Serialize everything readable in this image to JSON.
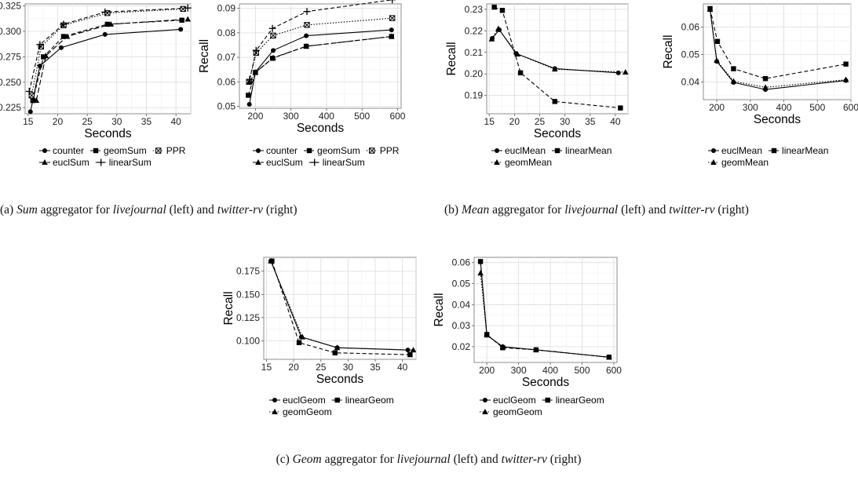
{
  "captions": [
    {
      "prefix": "(a) ",
      "agg": "Sum",
      "mid": " aggregator for ",
      "ds1": "livejournal",
      "mid2": " (left) and ",
      "ds2": "twitter-rv",
      "suffix": " (right)"
    },
    {
      "prefix": "(b) ",
      "agg": "Mean",
      "mid": " aggregator for ",
      "ds1": "livejournal",
      "mid2": " (left) and ",
      "ds2": "twitter-rv",
      "suffix": " (right)"
    },
    {
      "prefix": "(c) ",
      "agg": "Geom",
      "mid": " aggregator for ",
      "ds1": "livejournal",
      "mid2": " (left) and ",
      "ds2": "twitter-rv",
      "suffix": " (right)"
    }
  ],
  "chart_data": [
    {
      "type": "line",
      "xlabel": "Seconds",
      "ylabel": "Recall",
      "xlim": [
        14.5,
        42.5
      ],
      "ylim": [
        0.219,
        0.327
      ],
      "xticks": [
        15,
        20,
        25,
        30,
        35,
        40
      ],
      "yticks": [
        0.225,
        0.25,
        0.275,
        0.3,
        0.325
      ],
      "ytick_labels": [
        "0.225",
        "0.250",
        "0.275",
        "0.300",
        "0.325"
      ],
      "grid": true,
      "legend_rows": [
        [
          "counter",
          "geomSum",
          "PPR"
        ],
        [
          "euclSum",
          "linearSum"
        ]
      ],
      "series": [
        {
          "name": "counter",
          "marker": "circle",
          "dash": "solid",
          "x": [
            15.4,
            17.0,
            20.6,
            28.0,
            40.8
          ],
          "y": [
            0.221,
            0.266,
            0.284,
            0.297,
            0.302
          ]
        },
        {
          "name": "geomSum",
          "marker": "square",
          "dash": "dashed",
          "x": [
            15.8,
            17.6,
            21.0,
            28.4,
            41.0
          ],
          "y": [
            0.232,
            0.275,
            0.295,
            0.307,
            0.311
          ]
        },
        {
          "name": "PPR",
          "marker": "boxx",
          "dash": "dotted",
          "x": [
            15.6,
            17.2,
            21.0,
            28.4,
            41.2
          ],
          "y": [
            0.237,
            0.285,
            0.306,
            0.318,
            0.322
          ]
        },
        {
          "name": "euclSum",
          "marker": "triangle",
          "dash": "longdash",
          "x": [
            16.4,
            18.0,
            21.6,
            29.0,
            42.0
          ],
          "y": [
            0.232,
            0.276,
            0.295,
            0.307,
            0.312
          ]
        },
        {
          "name": "linearSum",
          "marker": "plus",
          "dash": "dashed",
          "x": [
            15.2,
            17.0,
            21.0,
            28.0,
            42.0
          ],
          "y": [
            0.241,
            0.287,
            0.307,
            0.319,
            0.323
          ]
        }
      ]
    },
    {
      "type": "line",
      "xlabel": "Seconds",
      "ylabel": "Recall",
      "xlim": [
        155,
        610
      ],
      "ylim": [
        0.0492,
        0.0918
      ],
      "xticks": [
        200,
        300,
        400,
        500,
        600
      ],
      "yticks": [
        0.05,
        0.06,
        0.07,
        0.08,
        0.09
      ],
      "ytick_labels": [
        "0.05",
        "0.06",
        "0.07",
        "0.08",
        "0.09"
      ],
      "grid": true,
      "legend_rows": [
        [
          "counter",
          "geomSum",
          "PPR"
        ],
        [
          "euclSum",
          "linearSum"
        ]
      ],
      "series": [
        {
          "name": "counter",
          "marker": "circle",
          "dash": "solid",
          "x": [
            183,
            200,
            250,
            343,
            583
          ],
          "y": [
            0.0508,
            0.064,
            0.0728,
            0.0788,
            0.0812
          ]
        },
        {
          "name": "geomSum",
          "marker": "square",
          "dash": "dashed",
          "x": [
            180,
            200,
            248,
            343,
            583
          ],
          "y": [
            0.0545,
            0.0638,
            0.0696,
            0.0745,
            0.0785
          ]
        },
        {
          "name": "PPR",
          "marker": "boxx",
          "dash": "dotted",
          "x": [
            182,
            202,
            250,
            345,
            585
          ],
          "y": [
            0.06,
            0.0718,
            0.0789,
            0.0832,
            0.086
          ]
        },
        {
          "name": "euclSum",
          "marker": "triangle",
          "dash": "longdash",
          "x": [
            183,
            200,
            250,
            343,
            583
          ],
          "y": [
            0.06,
            0.0638,
            0.0698,
            0.0745,
            0.0785
          ]
        },
        {
          "name": "linearSum",
          "marker": "plus",
          "dash": "dashed",
          "x": [
            184,
            202,
            248,
            345,
            585
          ],
          "y": [
            0.061,
            0.0728,
            0.0818,
            0.0887,
            0.0935
          ]
        }
      ]
    },
    {
      "type": "line",
      "xlabel": "Seconds",
      "ylabel": "Recall",
      "xlim": [
        14.5,
        42.5
      ],
      "ylim": [
        0.1815,
        0.2325
      ],
      "xticks": [
        15,
        20,
        25,
        30,
        35,
        40
      ],
      "yticks": [
        0.19,
        0.2,
        0.21,
        0.22,
        0.23
      ],
      "ytick_labels": [
        "0.19",
        "0.20",
        "0.21",
        "0.22",
        "0.23"
      ],
      "grid": true,
      "legend_rows": [
        [
          "euclMean",
          "linearMean"
        ],
        [
          "geomMean"
        ]
      ],
      "series": [
        {
          "name": "euclMean",
          "marker": "circle",
          "dash": "solid",
          "x": [
            15.6,
            17.0,
            20.3,
            28.0,
            40.6
          ],
          "y": [
            0.2165,
            0.2205,
            0.2095,
            0.2025,
            0.2005
          ]
        },
        {
          "name": "linearMean",
          "marker": "square",
          "dash": "dashed",
          "x": [
            16.0,
            17.6,
            21.2,
            28.0,
            41.0
          ],
          "y": [
            0.231,
            0.2295,
            0.2005,
            0.1872,
            0.1842
          ]
        },
        {
          "name": "geomMean",
          "marker": "triangle",
          "dash": "dotted",
          "x": [
            15.5,
            16.8,
            20.6,
            28.0,
            42.0
          ],
          "y": [
            0.2162,
            0.221,
            0.2092,
            0.2022,
            0.2008
          ]
        }
      ]
    },
    {
      "type": "line",
      "xlabel": "Seconds",
      "ylabel": "Recall",
      "xlim": [
        160,
        600
      ],
      "ylim": [
        0.0335,
        0.0685
      ],
      "xticks": [
        200,
        300,
        400,
        500,
        600
      ],
      "yticks": [
        0.04,
        0.05,
        0.06
      ],
      "ytick_labels": [
        "0.04",
        "0.05",
        "0.06"
      ],
      "grid": true,
      "legend_rows": [
        [
          "euclMean",
          "linearMean"
        ],
        [
          "geomMean"
        ]
      ],
      "series": [
        {
          "name": "euclMean",
          "marker": "circle",
          "dash": "solid",
          "x": [
            180,
            200,
            250,
            345,
            585
          ],
          "y": [
            0.0665,
            0.0475,
            0.0398,
            0.0372,
            0.0405
          ]
        },
        {
          "name": "linearMean",
          "marker": "square",
          "dash": "dashed",
          "x": [
            180,
            202,
            250,
            345,
            585
          ],
          "y": [
            0.0668,
            0.0548,
            0.0448,
            0.0412,
            0.0465
          ]
        },
        {
          "name": "geomMean",
          "marker": "triangle",
          "dash": "dotted",
          "x": [
            180,
            200,
            250,
            345,
            585
          ],
          "y": [
            0.0665,
            0.0478,
            0.0402,
            0.038,
            0.0408
          ]
        }
      ]
    },
    {
      "type": "line",
      "xlabel": "Seconds",
      "ylabel": "Recall",
      "xlim": [
        14.5,
        42.5
      ],
      "ylim": [
        0.08,
        0.19
      ],
      "xticks": [
        15,
        20,
        25,
        30,
        35,
        40
      ],
      "yticks": [
        0.1,
        0.125,
        0.15,
        0.175
      ],
      "ytick_labels": [
        "0.100",
        "0.125",
        "0.150",
        "0.175"
      ],
      "grid": true,
      "legend_rows": [
        [
          "euclGeom",
          "linearGeom"
        ],
        [
          "geomGeom"
        ]
      ],
      "series": [
        {
          "name": "euclGeom",
          "marker": "circle",
          "dash": "solid",
          "x": [
            15.8,
            21.4,
            28.0,
            41.0
          ],
          "y": [
            0.186,
            0.104,
            0.0925,
            0.09
          ]
        },
        {
          "name": "linearGeom",
          "marker": "square",
          "dash": "dashed",
          "x": [
            16.0,
            21.0,
            27.6,
            41.4
          ],
          "y": [
            0.186,
            0.098,
            0.087,
            0.085
          ]
        },
        {
          "name": "geomGeom",
          "marker": "triangle",
          "dash": "dotted",
          "x": [
            15.8,
            21.6,
            28.0,
            42.0
          ],
          "y": [
            0.186,
            0.104,
            0.0925,
            0.09
          ]
        }
      ]
    },
    {
      "type": "line",
      "xlabel": "Seconds",
      "ylabel": "Recall",
      "xlim": [
        160,
        610
      ],
      "ylim": [
        0.0125,
        0.0625
      ],
      "xticks": [
        200,
        300,
        400,
        500,
        600
      ],
      "yticks": [
        0.02,
        0.03,
        0.04,
        0.05,
        0.06
      ],
      "ytick_labels": [
        "0.02",
        "0.03",
        "0.04",
        "0.05",
        "0.06"
      ],
      "grid": true,
      "legend_rows": [
        [
          "euclGeom",
          "linearGeom"
        ],
        [
          "geomGeom"
        ]
      ],
      "series": [
        {
          "name": "euclGeom",
          "marker": "circle",
          "dash": "solid",
          "x": [
            180,
            200,
            250,
            355,
            585
          ],
          "y": [
            0.0605,
            0.0255,
            0.02,
            0.0185,
            0.015
          ]
        },
        {
          "name": "linearGeom",
          "marker": "square",
          "dash": "dashed",
          "x": [
            180,
            200,
            250,
            355,
            585
          ],
          "y": [
            0.0605,
            0.0258,
            0.0195,
            0.0185,
            0.015
          ]
        },
        {
          "name": "geomGeom",
          "marker": "triangle",
          "dash": "dotted",
          "x": [
            180,
            200,
            250,
            355,
            585
          ],
          "y": [
            0.055,
            0.0255,
            0.0198,
            0.0185,
            0.015
          ]
        }
      ]
    }
  ]
}
